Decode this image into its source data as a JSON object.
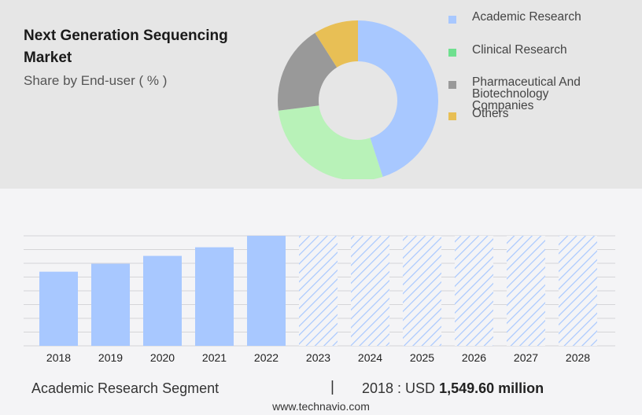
{
  "header": {
    "title": "Next Generation Sequencing Market",
    "subtitle": "Share by End-user ( % )"
  },
  "colors": {
    "top_panel": "#e6e6e6",
    "bottom_panel": "#f4f4f6",
    "bar": "#a8c8ff",
    "forecast_hatch": "#a8c8ff"
  },
  "chart_data": [
    {
      "type": "pie",
      "variant": "donut",
      "legend_position": "right",
      "slices": [
        {
          "label": "Academic Research",
          "value": 45,
          "color": "#a8c8ff"
        },
        {
          "label": "Clinical Research",
          "value": 28,
          "color": "#b8f2b8"
        },
        {
          "label": "Pharmaceutical And Biotechnology Companies",
          "value": 18,
          "color": "#999999"
        },
        {
          "label": "Others",
          "value": 9,
          "color": "#e8bf55"
        }
      ],
      "legend": [
        {
          "label": "Academic Research",
          "color": "#a8c8ff"
        },
        {
          "label": "Clinical Research",
          "color": "#6fe08f"
        },
        {
          "label": "Pharmaceutical And Biotechnology Companies",
          "color": "#999999"
        },
        {
          "label": "Others",
          "color": "#e8bf55"
        }
      ]
    },
    {
      "type": "bar",
      "categories": [
        "2018",
        "2019",
        "2020",
        "2021",
        "2022",
        "2023",
        "2024",
        "2025",
        "2026",
        "2027",
        "2028"
      ],
      "values": [
        1549.6,
        1716,
        1880,
        2060,
        2300,
        2300,
        2300,
        2300,
        2300,
        2300,
        2300
      ],
      "forecast_from": "2023",
      "ylim": [
        0,
        2300
      ],
      "grid": true
    }
  ],
  "footer": {
    "segment": "Academic Research Segment",
    "divider": "|",
    "value_prefix": "2018 : USD",
    "value_bold": "1,549.60 million",
    "source": "www.technavio.com"
  }
}
